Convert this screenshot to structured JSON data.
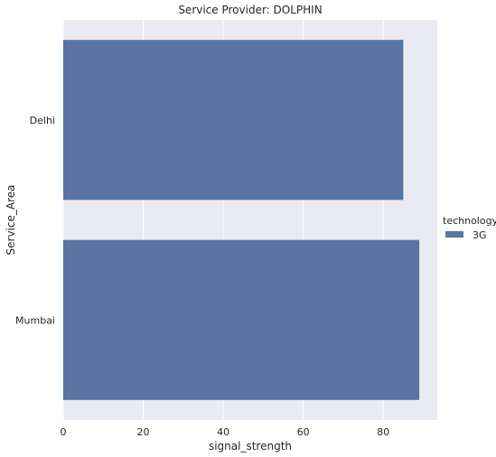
{
  "chart_data": {
    "type": "bar",
    "orientation": "horizontal",
    "title": "Service Provider: DOLPHIN",
    "xlabel": "signal_strength",
    "ylabel": "Service_Area",
    "categories": [
      "Delhi",
      "Mumbai"
    ],
    "series": [
      {
        "name": "3G",
        "values": [
          85,
          89
        ],
        "color": "#5875a4"
      }
    ],
    "xlim": [
      0,
      93.5
    ],
    "xticks": [
      0,
      20,
      40,
      60,
      80
    ],
    "grid": true,
    "legend": {
      "title": "technology",
      "placement": "right"
    },
    "background": "#eaeaf2"
  }
}
